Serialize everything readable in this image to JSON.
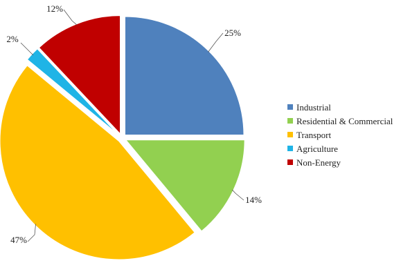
{
  "chart_data": {
    "type": "pie",
    "title": "",
    "unit": "%",
    "categories": [
      "Industrial",
      "Residential & Commercial",
      "Transport",
      "Agriculture",
      "Non-Energy"
    ],
    "values": [
      25,
      14,
      47,
      2,
      12
    ],
    "labels": [
      "25%",
      "14%",
      "47%",
      "2%",
      "12%"
    ],
    "colors": [
      "#4f81bd",
      "#92d050",
      "#ffc000",
      "#1fb4e6",
      "#c00000"
    ],
    "start_angle_deg": 0,
    "direction": "clockwise",
    "exploded": true,
    "legend": {
      "position": "right",
      "entries": [
        "Industrial",
        "Residential & Commercial",
        "Transport",
        "Agriculture",
        "Non-Energy"
      ]
    }
  }
}
